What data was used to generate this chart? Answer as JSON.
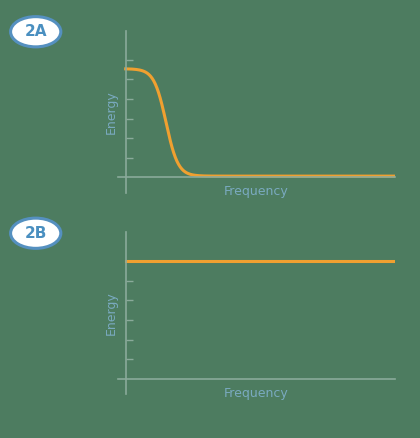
{
  "background_color": "#4d7c60",
  "line_color": "#f0a030",
  "axis_color": "#8aaa9a",
  "tick_color": "#8aaa9a",
  "label_color": "#7aaac0",
  "label_fontsize": 9,
  "badge_bg_color": "#ffffff",
  "badge_edge_color": "#5590c0",
  "badge_text_color": "#4a8fc0",
  "badge_fontsize": 11,
  "xlabel": "Frequency",
  "ylabel": "Energy",
  "badge_2A": "2A",
  "badge_2B": "2B",
  "line_width": 2.2,
  "axis_linewidth": 1.2
}
